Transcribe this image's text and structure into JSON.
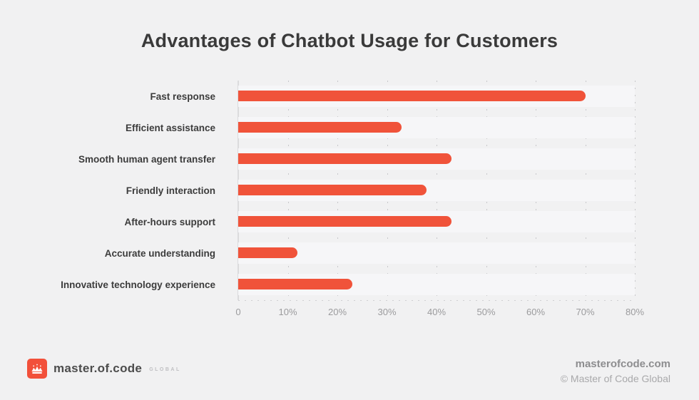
{
  "page": {
    "background": "#f1f1f2"
  },
  "header": {
    "title": "Advantages of Chatbot Usage for Customers"
  },
  "chart_data": {
    "type": "bar",
    "orientation": "horizontal",
    "title": "Advantages of Chatbot Usage for Customers",
    "categories": [
      "Fast response",
      "Efficient assistance",
      "Smooth human agent transfer",
      "Friendly interaction",
      "After-hours support",
      "Accurate understanding",
      "Innovative technology experience"
    ],
    "values": [
      70,
      33,
      43,
      38,
      43,
      12,
      23
    ],
    "unit": "%",
    "xlabel": "",
    "ylabel": "",
    "xlim": [
      0,
      80
    ],
    "x_ticks": [
      "0",
      "10%",
      "20%",
      "30%",
      "40%",
      "50%",
      "60%",
      "70%",
      "80%"
    ],
    "x_tick_values": [
      0,
      10,
      20,
      30,
      40,
      50,
      60,
      70,
      80
    ],
    "bar_color": "#f0533a",
    "grid": "vertical-dashed",
    "legend": "none"
  },
  "footer": {
    "logo": {
      "icon": "crown-icon",
      "brand": "master.of.code",
      "suffix": "GLOBAL",
      "square_color": "#f2503a"
    },
    "website": "masterofcode.com",
    "copyright": "© Master of Code Global"
  }
}
